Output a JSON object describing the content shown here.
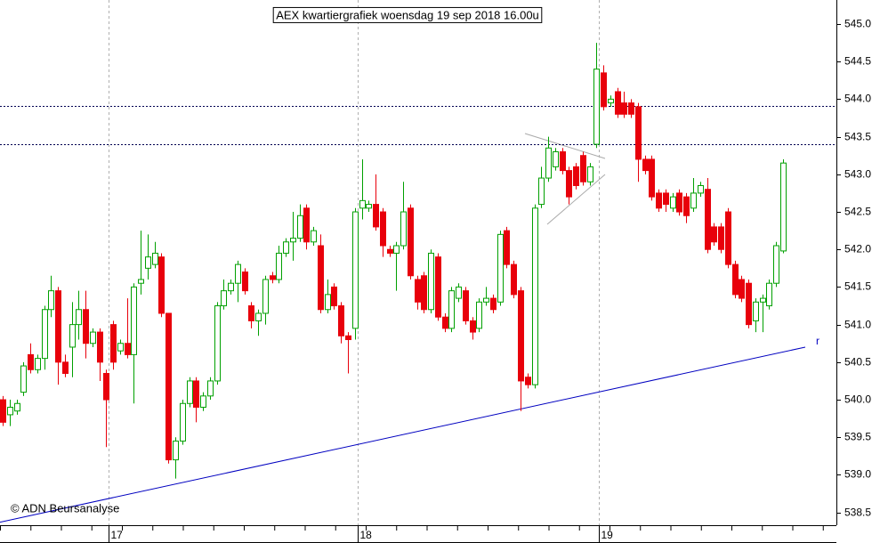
{
  "chart_data": {
    "type": "candlestick",
    "title": "AEX kwartiergrafiek woensdag 19 sep 2018 16.00u",
    "source": "© ADN Beursanalyse",
    "categories": [
      null,
      null,
      null,
      null,
      null,
      null,
      null,
      null,
      null,
      null,
      null,
      null,
      null,
      null,
      null,
      "17",
      null,
      null,
      null,
      null,
      null,
      null,
      null,
      null,
      null,
      null,
      null,
      null,
      null,
      null,
      null,
      null,
      null,
      null,
      null,
      null,
      null,
      null,
      null,
      null,
      null,
      null,
      null,
      null,
      null,
      null,
      null,
      null,
      null,
      null,
      null,
      "18",
      null,
      null,
      null,
      null,
      null,
      null,
      null,
      null,
      null,
      null,
      null,
      null,
      null,
      null,
      null,
      null,
      null,
      null,
      null,
      null,
      null,
      null,
      null,
      null,
      null,
      null,
      null,
      null,
      null,
      null,
      null,
      null,
      null,
      null,
      "19",
      null,
      null,
      null,
      null,
      null,
      null,
      null,
      null,
      null,
      null,
      null,
      null,
      null,
      null,
      null,
      null,
      null,
      null,
      null,
      null,
      null,
      null,
      null,
      null,
      null,
      null,
      null
    ],
    "open": [
      540.0,
      539.8,
      539.85,
      540.1,
      540.6,
      540.4,
      540.55,
      541.2,
      541.45,
      540.5,
      540.7,
      541.0,
      541.2,
      540.75,
      540.9,
      540.35,
      541.0,
      540.65,
      540.75,
      540.6,
      541.55,
      541.75,
      541.8,
      541.9,
      541.15,
      539.2,
      539.45,
      539.95,
      540.25,
      539.9,
      540.05,
      540.25,
      541.25,
      541.45,
      541.55,
      541.7,
      541.25,
      541.05,
      541.15,
      541.65,
      541.6,
      541.95,
      542.1,
      542.15,
      542.55,
      542.1,
      542.05,
      541.2,
      541.5,
      541.25,
      540.85,
      540.95,
      542.55,
      542.55,
      542.6,
      542.5,
      542.0,
      541.95,
      542.05,
      542.55,
      541.6,
      541.65,
      541.2,
      541.9,
      541.1,
      540.95,
      541.35,
      541.45,
      541.05,
      540.95,
      541.3,
      541.35,
      541.3,
      542.25,
      541.8,
      541.45,
      540.3,
      540.2,
      542.6,
      542.95,
      543.1,
      543.3,
      543.05,
      543.1,
      543.25,
      542.9,
      543.4,
      544.35,
      543.95,
      544.1,
      543.95,
      543.95,
      543.9,
      543.2,
      543.2,
      542.75,
      542.75,
      542.55,
      542.75,
      542.7,
      542.55,
      542.75,
      542.8,
      542.3,
      542.3,
      542.5,
      541.8,
      541.6,
      541.55,
      541.05,
      541.3,
      541.25,
      541.55,
      541.98
    ],
    "high": [
      540.05,
      540.0,
      540.0,
      540.5,
      540.75,
      540.6,
      541.25,
      541.65,
      541.5,
      540.6,
      541.3,
      541.45,
      541.45,
      540.95,
      540.95,
      540.4,
      541.05,
      540.8,
      541.35,
      541.55,
      542.25,
      542.2,
      542.1,
      541.95,
      541.15,
      539.5,
      540.0,
      540.3,
      540.3,
      540.1,
      540.3,
      541.3,
      541.6,
      541.6,
      541.85,
      541.75,
      541.3,
      541.2,
      541.65,
      541.7,
      542.05,
      542.15,
      542.5,
      542.6,
      542.6,
      542.3,
      542.2,
      541.6,
      541.55,
      541.3,
      540.9,
      542.55,
      543.2,
      542.65,
      543.0,
      542.55,
      542.05,
      542.1,
      542.9,
      542.6,
      541.65,
      541.7,
      542.0,
      541.95,
      541.15,
      541.5,
      541.55,
      541.5,
      541.1,
      541.35,
      541.5,
      541.4,
      542.25,
      542.3,
      541.85,
      541.5,
      540.35,
      542.6,
      543.1,
      543.5,
      543.35,
      543.35,
      543.1,
      543.15,
      543.3,
      543.15,
      544.75,
      544.45,
      544.05,
      544.15,
      544.1,
      544.0,
      543.95,
      543.25,
      543.25,
      542.8,
      542.8,
      542.75,
      542.8,
      542.75,
      542.95,
      542.9,
      542.95,
      542.35,
      542.35,
      542.55,
      541.85,
      541.65,
      541.6,
      541.35,
      541.4,
      541.6,
      542.1,
      543.2
    ],
    "low": [
      539.65,
      539.65,
      539.8,
      540.05,
      540.35,
      540.35,
      540.4,
      541.1,
      540.2,
      540.3,
      540.3,
      540.8,
      540.55,
      540.7,
      540.25,
      539.37,
      540.4,
      540.6,
      540.55,
      539.95,
      541.4,
      541.6,
      541.75,
      541.1,
      539.15,
      538.95,
      539.4,
      539.9,
      539.7,
      539.85,
      540.0,
      540.2,
      541.2,
      541.4,
      541.3,
      541.4,
      540.95,
      540.85,
      541.0,
      541.55,
      541.55,
      541.9,
      541.85,
      542.1,
      542.0,
      542.05,
      541.15,
      541.15,
      541.2,
      540.75,
      540.35,
      540.8,
      542.4,
      542.5,
      542.25,
      541.9,
      541.9,
      541.45,
      542.0,
      541.6,
      541.2,
      541.15,
      541.15,
      541.05,
      540.9,
      540.9,
      541.3,
      541.0,
      540.8,
      540.9,
      541.25,
      541.15,
      541.25,
      541.75,
      541.35,
      539.85,
      540.15,
      540.15,
      542.55,
      542.9,
      543.05,
      543.0,
      542.6,
      542.8,
      542.85,
      542.85,
      543.35,
      543.85,
      543.9,
      543.75,
      543.75,
      543.75,
      542.9,
      543.0,
      542.65,
      542.5,
      542.5,
      542.5,
      542.45,
      542.35,
      542.5,
      542.7,
      541.95,
      542.05,
      541.95,
      541.75,
      541.35,
      541.3,
      540.95,
      540.9,
      540.9,
      541.2,
      541.5,
      541.95
    ],
    "close": [
      539.7,
      539.9,
      539.95,
      540.45,
      540.4,
      540.55,
      541.2,
      541.45,
      540.5,
      540.35,
      541.0,
      541.2,
      540.75,
      540.9,
      540.5,
      540.0,
      540.5,
      540.75,
      540.6,
      541.5,
      541.6,
      541.9,
      541.95,
      541.15,
      539.2,
      539.45,
      539.95,
      540.25,
      539.9,
      540.05,
      540.25,
      541.25,
      541.45,
      541.55,
      541.8,
      541.45,
      541.05,
      541.15,
      541.6,
      541.6,
      541.95,
      542.1,
      542.15,
      542.45,
      542.1,
      542.25,
      541.2,
      541.4,
      541.25,
      540.85,
      540.8,
      542.5,
      542.65,
      542.6,
      542.3,
      542.05,
      541.95,
      542.05,
      542.5,
      541.65,
      541.3,
      541.2,
      541.95,
      541.1,
      540.95,
      541.45,
      541.5,
      541.05,
      540.9,
      541.3,
      541.35,
      541.2,
      542.2,
      541.8,
      541.4,
      540.25,
      540.2,
      542.55,
      542.95,
      543.35,
      543.3,
      543.05,
      542.7,
      542.85,
      542.9,
      543.1,
      544.4,
      543.9,
      544.0,
      543.8,
      543.8,
      543.8,
      543.2,
      543.05,
      542.7,
      542.55,
      542.6,
      542.7,
      542.5,
      542.45,
      542.75,
      542.85,
      542.0,
      542.1,
      542.0,
      541.8,
      541.4,
      541.35,
      541.0,
      541.3,
      541.35,
      541.55,
      542.05,
      543.15
    ],
    "up_color": "#00a000",
    "down_color": "#e8000b",
    "ylim": [
      538.33,
      545.32
    ],
    "yticks": [
      {
        "value": 538.5,
        "label": "538.5"
      },
      {
        "value": 539,
        "label": "539.0"
      },
      {
        "value": 539.5,
        "label": "539.5"
      },
      {
        "value": 540,
        "label": "540.0"
      },
      {
        "value": 540.5,
        "label": "540.5"
      },
      {
        "value": 541,
        "label": "541.0"
      },
      {
        "value": 541.5,
        "label": "541.5"
      },
      {
        "value": 542,
        "label": "542.0"
      },
      {
        "value": 542.5,
        "label": "542.5"
      },
      {
        "value": 543,
        "label": "543.0"
      },
      {
        "value": 543.5,
        "label": "543.5"
      },
      {
        "value": 544,
        "label": "544.0"
      },
      {
        "value": 544.5,
        "label": "544.5"
      },
      {
        "value": 545,
        "label": "545.0"
      }
    ],
    "hlines": [
      543.91,
      543.4
    ],
    "trendline": {
      "start": 538.37,
      "end": 540.7,
      "label": "r",
      "color": "#0000c0"
    }
  }
}
